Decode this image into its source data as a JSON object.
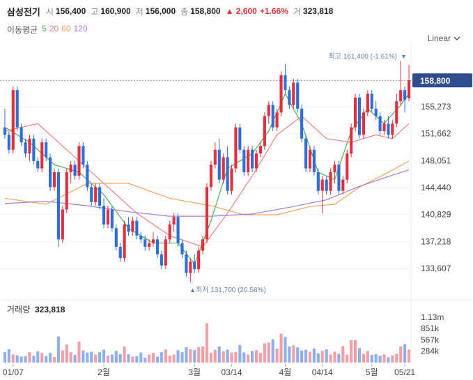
{
  "header": {
    "name": "삼성전기",
    "open_label": "시",
    "open": "156,400",
    "high_label": "고",
    "high": "160,900",
    "low_label": "저",
    "low": "156,000",
    "close_label": "종",
    "close": "158,800",
    "change": "▲ 2,600",
    "change_pct": "+1.66%",
    "volume_label": "거",
    "volume": "323,818"
  },
  "ma": {
    "label": "이동평균",
    "periods": [
      "5",
      "20",
      "60",
      "120"
    ],
    "colors": [
      "#4caf50",
      "#f08080",
      "#f4a460",
      "#a678e0"
    ]
  },
  "scale_button": "Linear",
  "chart_data": {
    "type": "candlestick",
    "y_ticks": [
      "155,273",
      "151,662",
      "148,051",
      "144,440",
      "140,829",
      "137,218",
      "133,607"
    ],
    "ylim": [
      130000,
      163000
    ],
    "x_ticks": [
      "01/07",
      "2월",
      "3월",
      "03/14",
      "4월",
      "04/14",
      "5월",
      "05/21"
    ],
    "current_price": 158800,
    "current_price_label": "158,800",
    "max_label": "최고 161,400 (-1.61%)",
    "min_label": "최저 131,700 (20.58%)",
    "volume_title": "거래량",
    "volume_value": "323,818",
    "volume_ticks": [
      "1.13m",
      "851k",
      "567k",
      "284k"
    ],
    "colors": {
      "up": "#e22f3d",
      "down": "#2d6fd6",
      "vol_up": "#f0a0a6",
      "vol_down": "#8fb0ea"
    },
    "candles": [
      [
        152500,
        155000,
        151000,
        151500
      ],
      [
        151500,
        152000,
        149000,
        149500
      ],
      [
        149500,
        158000,
        149000,
        157500
      ],
      [
        157500,
        158000,
        152000,
        152500
      ],
      [
        152500,
        153000,
        150000,
        150500
      ],
      [
        150500,
        151000,
        148500,
        149000
      ],
      [
        149000,
        151500,
        148000,
        151000
      ],
      [
        151000,
        151500,
        147500,
        148000
      ],
      [
        148000,
        148500,
        146500,
        147000
      ],
      [
        147000,
        151000,
        146500,
        150500
      ],
      [
        150500,
        151000,
        148000,
        148500
      ],
      [
        148500,
        149000,
        144000,
        144500
      ],
      [
        144500,
        147000,
        144000,
        146500
      ],
      [
        146500,
        147000,
        136500,
        137500
      ],
      [
        137500,
        142000,
        137000,
        141500
      ],
      [
        141500,
        147000,
        141000,
        146500
      ],
      [
        146500,
        148000,
        145000,
        147500
      ],
      [
        147500,
        148000,
        145500,
        146000
      ],
      [
        146000,
        150500,
        145500,
        150000
      ],
      [
        150000,
        150500,
        147000,
        147500
      ],
      [
        147500,
        148000,
        144000,
        144500
      ],
      [
        144500,
        145000,
        142000,
        142500
      ],
      [
        142500,
        145000,
        142000,
        144500
      ],
      [
        144500,
        145000,
        141500,
        142000
      ],
      [
        142000,
        143000,
        139000,
        139500
      ],
      [
        139500,
        142000,
        139000,
        141500
      ],
      [
        141500,
        142000,
        138500,
        139000
      ],
      [
        139000,
        139500,
        136000,
        136500
      ],
      [
        136500,
        137000,
        134500,
        135000
      ],
      [
        135000,
        140000,
        134500,
        139500
      ],
      [
        139500,
        140500,
        138000,
        138500
      ],
      [
        138500,
        140500,
        138000,
        140000
      ],
      [
        140000,
        140500,
        137500,
        138000
      ],
      [
        138000,
        138500,
        137000,
        137500
      ],
      [
        137500,
        138000,
        136000,
        136500
      ],
      [
        136500,
        137500,
        136000,
        137000
      ],
      [
        137000,
        138500,
        136500,
        137500
      ],
      [
        137500,
        138000,
        135000,
        135500
      ],
      [
        135500,
        136000,
        133500,
        134000
      ],
      [
        134000,
        138000,
        133500,
        137500
      ],
      [
        137500,
        140000,
        137000,
        139500
      ],
      [
        139500,
        141000,
        138500,
        140500
      ],
      [
        140500,
        141000,
        136500,
        137000
      ],
      [
        137000,
        137500,
        135000,
        135500
      ],
      [
        135500,
        136000,
        132500,
        133000
      ],
      [
        133000,
        135000,
        131700,
        134500
      ],
      [
        134500,
        135500,
        133000,
        133500
      ],
      [
        133500,
        136500,
        133000,
        136000
      ],
      [
        136000,
        138000,
        135500,
        137500
      ],
      [
        137500,
        145000,
        137000,
        144500
      ],
      [
        144500,
        148000,
        144000,
        147500
      ],
      [
        147500,
        150500,
        147000,
        149500
      ],
      [
        149500,
        151000,
        145000,
        145500
      ],
      [
        145500,
        149000,
        145000,
        148500
      ],
      [
        148500,
        150000,
        143500,
        144000
      ],
      [
        144000,
        147500,
        143500,
        147000
      ],
      [
        147000,
        153000,
        146500,
        152500
      ],
      [
        152500,
        153000,
        149000,
        149500
      ],
      [
        149500,
        150000,
        146000,
        146500
      ],
      [
        146500,
        150000,
        146000,
        149500
      ],
      [
        149500,
        150000,
        146500,
        147000
      ],
      [
        147000,
        149500,
        146500,
        149000
      ],
      [
        149000,
        150500,
        148500,
        150000
      ],
      [
        150000,
        154500,
        149500,
        154000
      ],
      [
        154000,
        156000,
        153000,
        155500
      ],
      [
        155500,
        156000,
        152000,
        152500
      ],
      [
        152500,
        155000,
        152000,
        154500
      ],
      [
        154500,
        160000,
        154000,
        159500
      ],
      [
        159500,
        161000,
        157000,
        157500
      ],
      [
        157500,
        158000,
        155000,
        155500
      ],
      [
        155500,
        159000,
        155000,
        158500
      ],
      [
        158500,
        159000,
        154500,
        155000
      ],
      [
        155000,
        155500,
        150500,
        151000
      ],
      [
        151000,
        151500,
        146500,
        147000
      ],
      [
        147000,
        150000,
        146500,
        149500
      ],
      [
        149500,
        150000,
        146000,
        146500
      ],
      [
        146500,
        147000,
        143500,
        144000
      ],
      [
        144000,
        146000,
        141000,
        145500
      ],
      [
        145500,
        146000,
        143500,
        144000
      ],
      [
        144000,
        147000,
        143500,
        146500
      ],
      [
        146500,
        148000,
        145000,
        147500
      ],
      [
        147500,
        148000,
        143500,
        144000
      ],
      [
        144000,
        146000,
        143500,
        145500
      ],
      [
        145500,
        149500,
        145000,
        149000
      ],
      [
        149000,
        153000,
        148500,
        152500
      ],
      [
        152500,
        157000,
        152000,
        156500
      ],
      [
        156500,
        157000,
        151000,
        151500
      ],
      [
        151500,
        155000,
        151000,
        154500
      ],
      [
        154500,
        157500,
        154000,
        157000
      ],
      [
        157000,
        157500,
        154500,
        155000
      ],
      [
        155000,
        156000,
        153500,
        154000
      ],
      [
        154000,
        154500,
        151500,
        152000
      ],
      [
        152000,
        153500,
        151500,
        153000
      ],
      [
        153000,
        154000,
        151000,
        151500
      ],
      [
        151500,
        153500,
        151000,
        153000
      ],
      [
        153000,
        157000,
        152500,
        156000
      ],
      [
        156000,
        161400,
        155500,
        157500
      ],
      [
        157500,
        158000,
        154500,
        156200
      ],
      [
        156400,
        160900,
        156000,
        158800
      ]
    ],
    "volumes": [
      260000,
      330000,
      200000,
      180000,
      150000,
      160000,
      260000,
      170000,
      280000,
      240000,
      160000,
      240000,
      140000,
      650000,
      300000,
      450000,
      260000,
      190000,
      520000,
      300000,
      250000,
      270000,
      200000,
      260000,
      320000,
      170000,
      200000,
      290000,
      210000,
      400000,
      210000,
      150000,
      160000,
      250000,
      120000,
      200000,
      240000,
      150000,
      260000,
      330000,
      170000,
      200000,
      310000,
      260000,
      380000,
      330000,
      310000,
      380000,
      400000,
      980000,
      240000,
      320000,
      400000,
      280000,
      320000,
      250000,
      260000,
      440000,
      250000,
      200000,
      290000,
      310000,
      240000,
      480000,
      500000,
      580000,
      350000,
      720000,
      640000,
      400000,
      430000,
      380000,
      300000,
      320000,
      270000,
      350000,
      230000,
      290000,
      330000,
      200000,
      270000,
      220000,
      410000,
      200000,
      560000,
      560000,
      360000,
      220000,
      290000,
      190000,
      210000,
      170000,
      200000,
      130000,
      180000,
      220000,
      400000,
      460000,
      323818
    ],
    "ma_series": [
      {
        "period": "5",
        "values": [
          [
            0,
            152500
          ],
          [
            6,
            150500
          ],
          [
            12,
            147500
          ],
          [
            18,
            146500
          ],
          [
            24,
            143500
          ],
          [
            30,
            139000
          ],
          [
            36,
            137000
          ],
          [
            42,
            137000
          ],
          [
            46,
            134200
          ],
          [
            50,
            140000
          ],
          [
            54,
            147000
          ],
          [
            60,
            149000
          ],
          [
            64,
            152000
          ],
          [
            68,
            157000
          ],
          [
            72,
            153000
          ],
          [
            76,
            146500
          ],
          [
            80,
            145500
          ],
          [
            84,
            152000
          ],
          [
            88,
            155000
          ],
          [
            92,
            153000
          ],
          [
            96,
            155500
          ],
          [
            98,
            157000
          ]
        ]
      },
      {
        "period": "20",
        "values": [
          [
            0,
            152000
          ],
          [
            8,
            153000
          ],
          [
            16,
            149000
          ],
          [
            24,
            145000
          ],
          [
            32,
            141000
          ],
          [
            40,
            138000
          ],
          [
            48,
            136500
          ],
          [
            54,
            141000
          ],
          [
            60,
            146000
          ],
          [
            66,
            151500
          ],
          [
            72,
            154000
          ],
          [
            78,
            151000
          ],
          [
            84,
            150500
          ],
          [
            90,
            151500
          ],
          [
            94,
            151000
          ],
          [
            98,
            153000
          ]
        ]
      },
      {
        "period": "60",
        "values": [
          [
            0,
            143000
          ],
          [
            10,
            142200
          ],
          [
            20,
            145000
          ],
          [
            30,
            145000
          ],
          [
            40,
            143000
          ],
          [
            50,
            142000
          ],
          [
            58,
            140800
          ],
          [
            66,
            140800
          ],
          [
            74,
            141900
          ],
          [
            80,
            142200
          ],
          [
            86,
            144500
          ],
          [
            92,
            146200
          ],
          [
            98,
            148000
          ]
        ]
      },
      {
        "period": "120",
        "values": [
          [
            0,
            142300
          ],
          [
            10,
            142600
          ],
          [
            20,
            142000
          ],
          [
            30,
            141200
          ],
          [
            40,
            140600
          ],
          [
            50,
            140600
          ],
          [
            60,
            140900
          ],
          [
            70,
            141900
          ],
          [
            78,
            142800
          ],
          [
            86,
            144600
          ],
          [
            94,
            146100
          ],
          [
            98,
            146800
          ]
        ]
      }
    ]
  }
}
